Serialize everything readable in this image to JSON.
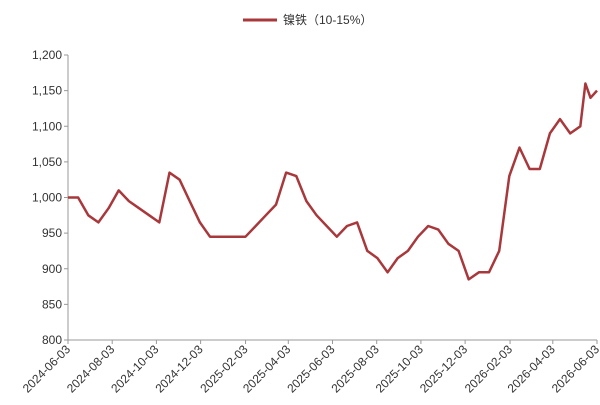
{
  "chart_data": {
    "type": "line",
    "x": [
      "2024-06-03",
      "2024-06-17",
      "2024-07-01",
      "2024-07-15",
      "2024-07-29",
      "2024-08-12",
      "2024-08-26",
      "2024-09-09",
      "2024-09-23",
      "2024-10-07",
      "2024-10-21",
      "2024-11-04",
      "2024-11-18",
      "2024-12-02",
      "2024-12-16",
      "2025-01-06",
      "2025-02-03",
      "2025-02-17",
      "2025-03-03",
      "2025-03-17",
      "2025-03-31",
      "2025-04-14",
      "2025-04-28",
      "2025-05-12",
      "2025-05-26",
      "2025-06-09",
      "2025-06-23",
      "2025-07-07",
      "2025-07-21",
      "2025-08-04",
      "2025-08-18",
      "2025-09-01",
      "2025-09-15",
      "2025-09-29",
      "2025-10-13",
      "2025-10-27",
      "2025-11-10",
      "2025-11-24",
      "2025-12-08",
      "2025-12-22",
      "2026-01-05",
      "2026-01-19",
      "2026-02-02",
      "2026-02-16",
      "2026-03-02",
      "2026-03-16",
      "2026-03-30",
      "2026-04-13",
      "2026-04-27",
      "2026-05-11",
      "2026-05-18",
      "2026-05-25",
      "2026-06-03"
    ],
    "series": [
      {
        "name": "镍铁（10-15%）",
        "color": "#a8383b",
        "values": [
          1000,
          1000,
          975,
          965,
          985,
          1010,
          995,
          985,
          975,
          965,
          1035,
          1025,
          995,
          965,
          945,
          945,
          945,
          960,
          975,
          990,
          1035,
          1030,
          995,
          975,
          960,
          945,
          960,
          965,
          925,
          915,
          895,
          915,
          925,
          945,
          960,
          955,
          935,
          925,
          885,
          895,
          895,
          925,
          1030,
          1070,
          1040,
          1040,
          1090,
          1110,
          1090,
          1100,
          1160,
          1140,
          1150
        ]
      }
    ],
    "xlim": [
      "2024-06-03",
      "2026-06-03"
    ],
    "xticks": [
      "2024-06-03",
      "2024-08-03",
      "2024-10-03",
      "2024-12-03",
      "2025-02-03",
      "2025-04-03",
      "2025-06-03",
      "2025-08-03",
      "2025-10-03",
      "2025-12-03",
      "2026-02-03",
      "2026-04-03",
      "2026-06-03"
    ],
    "ylim": [
      800,
      1200
    ],
    "yticks": [
      800,
      850,
      900,
      950,
      {
        "value": 1000,
        "label": "1,000"
      },
      {
        "value": 1050,
        "label": "1,050"
      },
      {
        "value": 1100,
        "label": "1,100"
      },
      {
        "value": 1150,
        "label": "1,150"
      },
      {
        "value": 1200,
        "label": "1,200"
      }
    ],
    "legend": "top"
  }
}
